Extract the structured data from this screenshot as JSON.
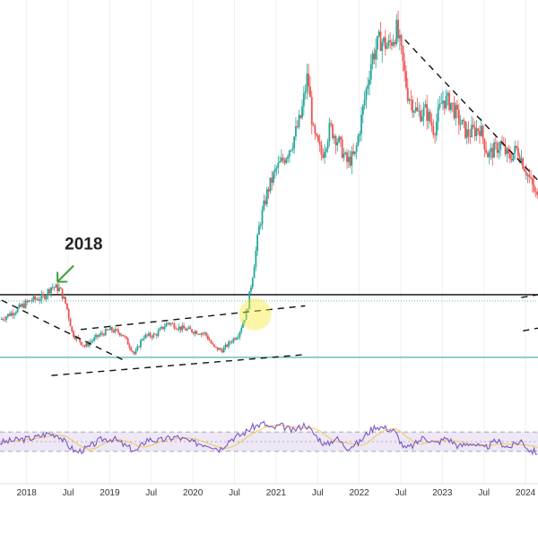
{
  "chart_data": {
    "type": "candlestick",
    "title": "",
    "annotation": {
      "label": "2018",
      "target_date": 2018.35,
      "target_price": 108
    },
    "price_axis": {
      "range": [
        35,
        300
      ],
      "shown": false
    },
    "x_axis": {
      "range": [
        2017.68,
        2024.15
      ],
      "ticks": [
        {
          "label": "2018",
          "t": 2018.0
        },
        {
          "label": "Jul",
          "t": 2018.5
        },
        {
          "label": "2019",
          "t": 2019.0
        },
        {
          "label": "Jul",
          "t": 2019.5
        },
        {
          "label": "2020",
          "t": 2020.0
        },
        {
          "label": "Jul",
          "t": 2020.5
        },
        {
          "label": "2021",
          "t": 2021.0
        },
        {
          "label": "Jul",
          "t": 2021.5
        },
        {
          "label": "2022",
          "t": 2022.0
        },
        {
          "label": "Jul",
          "t": 2022.5
        },
        {
          "label": "2023",
          "t": 2023.0
        },
        {
          "label": "Jul",
          "t": 2023.5
        },
        {
          "label": "2024",
          "t": 2024.0
        }
      ]
    },
    "price_path": [
      [
        2017.68,
        82
      ],
      [
        2017.85,
        88
      ],
      [
        2018.05,
        96
      ],
      [
        2018.2,
        98
      ],
      [
        2018.3,
        106
      ],
      [
        2018.4,
        104
      ],
      [
        2018.48,
        92
      ],
      [
        2018.55,
        72
      ],
      [
        2018.7,
        63
      ],
      [
        2018.85,
        70
      ],
      [
        2019.0,
        75
      ],
      [
        2019.15,
        72
      ],
      [
        2019.3,
        57
      ],
      [
        2019.4,
        70
      ],
      [
        2019.55,
        71
      ],
      [
        2019.7,
        80
      ],
      [
        2019.85,
        76
      ],
      [
        2020.0,
        74
      ],
      [
        2020.15,
        72
      ],
      [
        2020.25,
        62
      ],
      [
        2020.35,
        60
      ],
      [
        2020.45,
        66
      ],
      [
        2020.55,
        72
      ],
      [
        2020.65,
        88
      ],
      [
        2020.72,
        115
      ],
      [
        2020.8,
        150
      ],
      [
        2020.9,
        175
      ],
      [
        2021.0,
        190
      ],
      [
        2021.1,
        198
      ],
      [
        2021.2,
        210
      ],
      [
        2021.3,
        228
      ],
      [
        2021.38,
        258
      ],
      [
        2021.45,
        215
      ],
      [
        2021.55,
        200
      ],
      [
        2021.65,
        220
      ],
      [
        2021.75,
        210
      ],
      [
        2021.85,
        195
      ],
      [
        2021.95,
        200
      ],
      [
        2022.05,
        235
      ],
      [
        2022.15,
        270
      ],
      [
        2022.25,
        283
      ],
      [
        2022.35,
        278
      ],
      [
        2022.45,
        290
      ],
      [
        2022.5,
        275
      ],
      [
        2022.58,
        245
      ],
      [
        2022.7,
        230
      ],
      [
        2022.8,
        232
      ],
      [
        2022.9,
        218
      ],
      [
        2023.0,
        240
      ],
      [
        2023.1,
        238
      ],
      [
        2023.2,
        225
      ],
      [
        2023.3,
        215
      ],
      [
        2023.45,
        220
      ],
      [
        2023.55,
        200
      ],
      [
        2023.7,
        208
      ],
      [
        2023.8,
        198
      ],
      [
        2023.9,
        205
      ],
      [
        2024.0,
        190
      ],
      [
        2024.1,
        175
      ],
      [
        2024.15,
        168
      ]
    ],
    "horizontal_levels": [
      {
        "name": "resistance-2018-high",
        "price": 100,
        "color": "#000000",
        "style": "solid"
      },
      {
        "name": "support-cyan",
        "price": 55,
        "color": "#4fb6b0",
        "style": "solid"
      }
    ],
    "trendlines": [
      {
        "name": "descending-2018",
        "points": [
          [
            2017.7,
            96
          ],
          [
            2019.2,
            52
          ]
        ]
      },
      {
        "name": "channel-upper",
        "points": [
          [
            2018.65,
            75
          ],
          [
            2021.35,
            92
          ]
        ]
      },
      {
        "name": "channel-lower",
        "points": [
          [
            2018.3,
            42
          ],
          [
            2021.35,
            57
          ]
        ]
      },
      {
        "name": "descending-2022",
        "points": [
          [
            2022.55,
            283
          ],
          [
            2024.15,
            182
          ]
        ]
      },
      {
        "name": "right-edge-upper",
        "points": [
          [
            2023.95,
            98
          ],
          [
            2024.15,
            100
          ]
        ]
      },
      {
        "name": "right-edge-lower",
        "points": [
          [
            2023.97,
            74
          ],
          [
            2024.15,
            76
          ]
        ]
      }
    ],
    "highlight": {
      "date": 2020.75,
      "price": 86
    },
    "rsi": {
      "range": [
        0,
        100
      ],
      "levels": [
        70,
        50,
        30
      ],
      "path": [
        [
          2017.68,
          48
        ],
        [
          2017.9,
          54
        ],
        [
          2018.1,
          58
        ],
        [
          2018.25,
          67
        ],
        [
          2018.38,
          64
        ],
        [
          2018.5,
          42
        ],
        [
          2018.6,
          28
        ],
        [
          2018.75,
          38
        ],
        [
          2018.9,
          55
        ],
        [
          2019.05,
          56
        ],
        [
          2019.2,
          40
        ],
        [
          2019.32,
          30
        ],
        [
          2019.45,
          55
        ],
        [
          2019.6,
          52
        ],
        [
          2019.8,
          60
        ],
        [
          2020.0,
          48
        ],
        [
          2020.2,
          44
        ],
        [
          2020.32,
          34
        ],
        [
          2020.45,
          55
        ],
        [
          2020.6,
          66
        ],
        [
          2020.72,
          80
        ],
        [
          2020.85,
          88
        ],
        [
          2020.95,
          76
        ],
        [
          2021.05,
          84
        ],
        [
          2021.2,
          72
        ],
        [
          2021.35,
          86
        ],
        [
          2021.48,
          62
        ],
        [
          2021.6,
          42
        ],
        [
          2021.72,
          58
        ],
        [
          2021.85,
          38
        ],
        [
          2022.0,
          48
        ],
        [
          2022.1,
          68
        ],
        [
          2022.2,
          82
        ],
        [
          2022.32,
          78
        ],
        [
          2022.42,
          72
        ],
        [
          2022.55,
          35
        ],
        [
          2022.65,
          42
        ],
        [
          2022.78,
          60
        ],
        [
          2022.92,
          46
        ],
        [
          2023.05,
          58
        ],
        [
          2023.2,
          40
        ],
        [
          2023.35,
          48
        ],
        [
          2023.5,
          35
        ],
        [
          2023.65,
          52
        ],
        [
          2023.8,
          38
        ],
        [
          2023.95,
          52
        ],
        [
          2024.05,
          32
        ],
        [
          2024.15,
          28
        ]
      ]
    }
  }
}
